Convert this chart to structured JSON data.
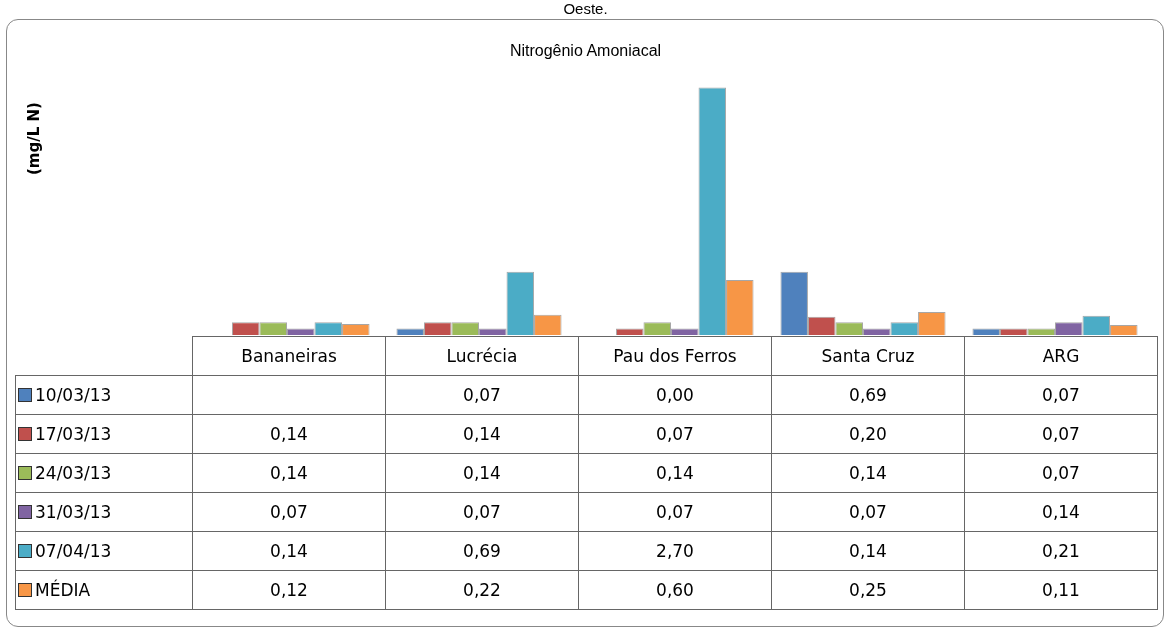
{
  "chart_data": {
    "type": "bar",
    "title": "Nitrogênio Amoniacal",
    "annotations": [
      "Oeste.",
      "(mg/L N)"
    ],
    "categories": [
      "Bananeiras",
      "Lucrécia",
      "Pau dos Ferros",
      "Santa Cruz",
      "ARG"
    ],
    "series": [
      {
        "name": "10/03/13",
        "color": "#4f81bd",
        "values": [
          null,
          0.07,
          0.0,
          0.69,
          0.07
        ],
        "value_labels": [
          null,
          "0,07",
          "0,00",
          "0,69",
          "0,07"
        ]
      },
      {
        "name": "17/03/13",
        "color": "#c0504d",
        "values": [
          0.14,
          0.14,
          0.07,
          0.2,
          0.07
        ],
        "value_labels": [
          "0,14",
          "0,14",
          "0,07",
          "0,20",
          "0,07"
        ]
      },
      {
        "name": "24/03/13",
        "color": "#9bbb59",
        "values": [
          0.14,
          0.14,
          0.14,
          0.14,
          0.07
        ],
        "value_labels": [
          "0,14",
          "0,14",
          "0,14",
          "0,14",
          "0,07"
        ]
      },
      {
        "name": "31/03/13",
        "color": "#8064a2",
        "values": [
          0.07,
          0.07,
          0.07,
          0.07,
          0.14
        ],
        "value_labels": [
          "0,07",
          "0,07",
          "0,07",
          "0,07",
          "0,14"
        ]
      },
      {
        "name": "07/04/13",
        "color": "#4bacc6",
        "values": [
          0.14,
          0.69,
          2.7,
          0.14,
          0.21
        ],
        "value_labels": [
          "0,14",
          "0,69",
          "2,70",
          "0,14",
          "0,21"
        ]
      },
      {
        "name": "MÉDIA",
        "color": "#f79646",
        "values": [
          0.12,
          0.22,
          0.6,
          0.25,
          0.11
        ],
        "value_labels": [
          "0,12",
          "0,22",
          "0,60",
          "0,25",
          "0,11"
        ]
      }
    ],
    "legend": "left"
  }
}
